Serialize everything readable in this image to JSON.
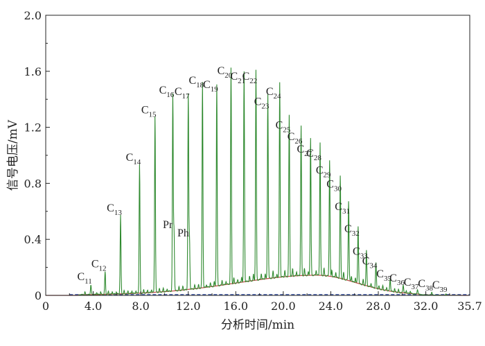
{
  "chart_data": {
    "type": "line",
    "title": "",
    "xlabel": "分析时间/min",
    "ylabel": "信号电压/mV",
    "xlim": [
      0,
      35.7
    ],
    "ylim": [
      0,
      2.0
    ],
    "x_ticks": [
      "0",
      "4.0",
      "8.0",
      "12.0",
      "16.0",
      "20.0",
      "24.0",
      "28.0",
      "32.0",
      "35.7"
    ],
    "y_ticks": [
      "0",
      "0.4",
      "0.8",
      "1.2",
      "1.6",
      "2.0"
    ],
    "colors": {
      "trace": "#2f8a2f",
      "baseline": "#c0504d",
      "blank": "#1f3a93",
      "axis": "#222222"
    },
    "baseline_hump": {
      "peak_x": 22.8,
      "peak_y": 0.14
    },
    "peaks": [
      {
        "name": "C",
        "sub": "11",
        "x": 3.8,
        "y": 0.07
      },
      {
        "name": "C",
        "sub": "12",
        "x": 5.0,
        "y": 0.16
      },
      {
        "name": "C",
        "sub": "13",
        "x": 6.3,
        "y": 0.56
      },
      {
        "name": "C",
        "sub": "14",
        "x": 7.9,
        "y": 0.92
      },
      {
        "name": "C",
        "sub": "15",
        "x": 9.2,
        "y": 1.26
      },
      {
        "name": "C",
        "sub": "16",
        "x": 10.7,
        "y": 1.4
      },
      {
        "name": "Pr",
        "sub": "",
        "x": 10.8,
        "y": 0.44
      },
      {
        "name": "C",
        "sub": "17",
        "x": 12.0,
        "y": 1.39
      },
      {
        "name": "Ph",
        "sub": "",
        "x": 12.1,
        "y": 0.38
      },
      {
        "name": "C",
        "sub": "18",
        "x": 13.2,
        "y": 1.47
      },
      {
        "name": "C",
        "sub": "19",
        "x": 14.4,
        "y": 1.44
      },
      {
        "name": "C",
        "sub": "20",
        "x": 15.6,
        "y": 1.54
      },
      {
        "name": "C",
        "sub": "21",
        "x": 16.7,
        "y": 1.5
      },
      {
        "name": "C",
        "sub": "22",
        "x": 17.7,
        "y": 1.5
      },
      {
        "name": "C",
        "sub": "23",
        "x": 18.7,
        "y": 1.32
      },
      {
        "name": "C",
        "sub": "24",
        "x": 19.7,
        "y": 1.39
      },
      {
        "name": "C",
        "sub": "25",
        "x": 20.5,
        "y": 1.15
      },
      {
        "name": "C",
        "sub": "26",
        "x": 21.5,
        "y": 1.07
      },
      {
        "name": "C",
        "sub": "27",
        "x": 22.3,
        "y": 0.98
      },
      {
        "name": "C",
        "sub": "28",
        "x": 23.1,
        "y": 0.95
      },
      {
        "name": "C",
        "sub": "29",
        "x": 23.9,
        "y": 0.83
      },
      {
        "name": "C",
        "sub": "30",
        "x": 24.8,
        "y": 0.73
      },
      {
        "name": "C",
        "sub": "31",
        "x": 25.5,
        "y": 0.57
      },
      {
        "name": "C",
        "sub": "32",
        "x": 26.3,
        "y": 0.41
      },
      {
        "name": "C",
        "sub": "33",
        "x": 27.0,
        "y": 0.25
      },
      {
        "name": "C",
        "sub": "34",
        "x": 27.8,
        "y": 0.18
      },
      {
        "name": "C",
        "sub": "35",
        "x": 29.0,
        "y": 0.09
      },
      {
        "name": "C",
        "sub": "36",
        "x": 30.1,
        "y": 0.06
      },
      {
        "name": "C",
        "sub": "37",
        "x": 31.3,
        "y": 0.03
      },
      {
        "name": "C",
        "sub": "38",
        "x": 32.5,
        "y": 0.02
      },
      {
        "name": "C",
        "sub": "39",
        "x": 33.7,
        "y": 0.01
      }
    ]
  }
}
